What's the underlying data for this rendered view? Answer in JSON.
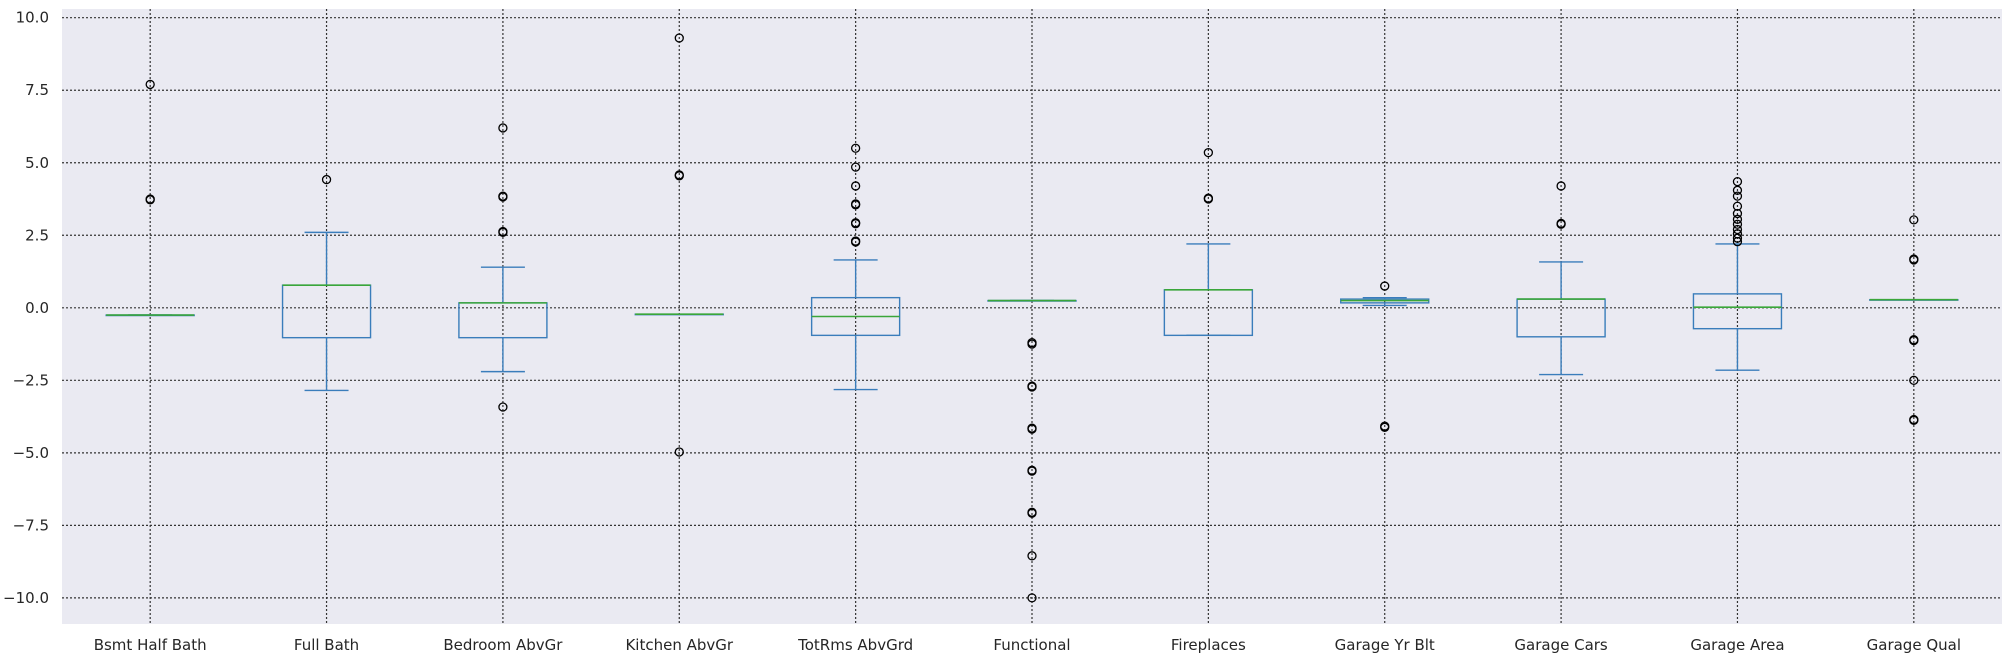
{
  "chart_data": {
    "type": "box",
    "ylim": [
      -10.9,
      10.3
    ],
    "yticks": [
      10.0,
      7.5,
      5.0,
      2.5,
      0.0,
      -2.5,
      -5.0,
      -7.5,
      -10.0
    ],
    "ytick_labels": [
      "10.0",
      "7.5",
      "5.0",
      "2.5",
      "0.0",
      "−2.5",
      "−5.0",
      "−7.5",
      "−10.0"
    ],
    "grid": true,
    "legend": "none",
    "colors": {
      "background": "#eaeaf2",
      "grid": "#333333",
      "box": "#3a7dbb",
      "median": "#3aa63a",
      "outlier": "#000000"
    },
    "categories": [
      "Bsmt Half Bath",
      "Full Bath",
      "Bedroom AbvGr",
      "Kitchen AbvGr",
      "TotRms AbvGrd",
      "Functional",
      "Fireplaces",
      "Garage Yr Blt",
      "Garage Cars",
      "Garage Area",
      "Garage Qual"
    ],
    "boxes": [
      {
        "whislo": -0.25,
        "q1": -0.25,
        "med": -0.25,
        "q3": -0.25,
        "whishi": -0.25,
        "fliers": [
          7.7,
          3.72,
          3.75
        ]
      },
      {
        "whislo": -2.85,
        "q1": -1.03,
        "med": 0.78,
        "q3": 0.78,
        "whishi": 2.6,
        "fliers": [
          4.42
        ]
      },
      {
        "whislo": -2.2,
        "q1": -1.03,
        "med": 0.17,
        "q3": 0.17,
        "whishi": 1.4,
        "fliers": [
          6.2,
          3.82,
          3.85,
          2.6,
          2.63,
          -3.42
        ]
      },
      {
        "whislo": -0.22,
        "q1": -0.22,
        "med": -0.22,
        "q3": -0.22,
        "whishi": -0.22,
        "fliers": [
          9.3,
          4.55,
          4.58,
          -4.97
        ]
      },
      {
        "whislo": -2.82,
        "q1": -0.95,
        "med": -0.3,
        "q3": 0.35,
        "whishi": 1.65,
        "fliers": [
          5.5,
          4.85,
          4.2,
          3.55,
          3.58,
          2.93,
          2.9,
          2.27,
          2.3
        ]
      },
      {
        "whislo": 0.25,
        "q1": 0.25,
        "med": 0.25,
        "q3": 0.25,
        "whishi": 0.25,
        "fliers": [
          -1.2,
          -1.25,
          -2.7,
          -2.73,
          -4.15,
          -4.18,
          -5.6,
          -5.63,
          -7.05,
          -7.08,
          -8.55,
          -10.0
        ]
      },
      {
        "whislo": -0.95,
        "q1": -0.95,
        "med": 0.62,
        "q3": 0.62,
        "whishi": 2.2,
        "fliers": [
          5.35,
          3.75,
          3.78
        ]
      },
      {
        "whislo": 0.08,
        "q1": 0.17,
        "med": 0.25,
        "q3": 0.3,
        "whishi": 0.35,
        "fliers": [
          0.75,
          -4.08,
          -4.12
        ]
      },
      {
        "whislo": -2.3,
        "q1": -1.0,
        "med": 0.3,
        "q3": 0.3,
        "whishi": 1.58,
        "fliers": [
          4.2,
          2.88,
          2.91
        ]
      },
      {
        "whislo": -2.15,
        "q1": -0.72,
        "med": 0.02,
        "q3": 0.48,
        "whishi": 2.2,
        "fliers": [
          4.35,
          4.05,
          3.85,
          3.5,
          3.25,
          3.05,
          2.88,
          2.7,
          2.55,
          2.4,
          2.28
        ]
      },
      {
        "whislo": 0.28,
        "q1": 0.28,
        "med": 0.28,
        "q3": 0.28,
        "whishi": 0.28,
        "fliers": [
          3.03,
          1.65,
          1.68,
          -1.1,
          -1.13,
          -2.5,
          -3.85,
          -3.88
        ]
      }
    ]
  }
}
